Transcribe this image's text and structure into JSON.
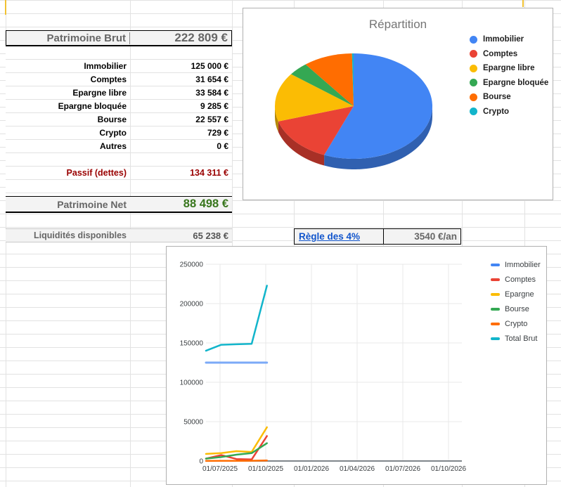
{
  "colors": {
    "blue": "#4285F4",
    "red": "#EA4335",
    "yellow": "#FBBC04",
    "green": "#34A853",
    "orange": "#FF6D01",
    "teal": "#12B5CB",
    "net_green": "#38761D",
    "passif_red": "#990000",
    "muted_gray": "#666666",
    "link_blue": "#1155CC"
  },
  "summary": {
    "brut": {
      "label": "Patrimoine Brut",
      "value": "222 809 €"
    },
    "items": [
      {
        "label": "Immobilier",
        "value": "125 000 €"
      },
      {
        "label": "Comptes",
        "value": "31 654 €"
      },
      {
        "label": "Epargne libre",
        "value": "33 584 €"
      },
      {
        "label": "Epargne bloquée",
        "value": "9 285 €"
      },
      {
        "label": "Bourse",
        "value": "22 557 €"
      },
      {
        "label": "Crypto",
        "value": "729 €"
      },
      {
        "label": "Autres",
        "value": "0 €"
      }
    ],
    "passif": {
      "label": "Passif (dettes)",
      "value": "134 311 €"
    },
    "net": {
      "label": "Patrimoine Net",
      "value": "88 498 €"
    },
    "liquidites": {
      "label": "Liquidités disponibles",
      "value": "65 238 €"
    }
  },
  "regle": {
    "label": "Règle des 4%",
    "value": "3540 €/an"
  },
  "chart_data": [
    {
      "type": "pie",
      "style": "3d",
      "title": "Répartition",
      "labels": [
        "Immobilier",
        "Comptes",
        "Epargne libre",
        "Epargne bloquée",
        "Bourse",
        "Crypto"
      ],
      "values": [
        125000,
        31654,
        33584,
        9285,
        22557,
        729
      ],
      "colors": [
        "#4285F4",
        "#EA4335",
        "#FBBC04",
        "#34A853",
        "#FF6D01",
        "#12B5CB"
      ],
      "legend_position": "right"
    },
    {
      "type": "line",
      "x": [
        "01/06/2025",
        "01/07/2025",
        "01/08/2025",
        "01/09/2025",
        "01/10/2025"
      ],
      "x_axis_ticks": [
        "01/07/2025",
        "01/10/2025",
        "01/01/2026",
        "01/04/2026",
        "01/07/2026",
        "01/10/2026"
      ],
      "series": [
        {
          "name": "Immobilier",
          "color": "#4285F4",
          "line_color": "#7BAAF7",
          "values": [
            125000,
            125000,
            125000,
            125000,
            125000
          ]
        },
        {
          "name": "Comptes",
          "color": "#EA4335",
          "values": [
            3000,
            7500,
            2500,
            2000,
            31654
          ]
        },
        {
          "name": "Epargne",
          "color": "#FBBC04",
          "values": [
            9000,
            10000,
            12500,
            11500,
            42869
          ]
        },
        {
          "name": "Bourse",
          "color": "#34A853",
          "values": [
            3000,
            5000,
            8000,
            10000,
            22557
          ]
        },
        {
          "name": "Crypto",
          "color": "#FF6D01",
          "values": [
            100,
            200,
            300,
            400,
            729
          ]
        },
        {
          "name": "Total Brut",
          "color": "#12B5CB",
          "values": [
            140100,
            147700,
            148300,
            148900,
            222809
          ]
        }
      ],
      "ylim": [
        0,
        250000
      ],
      "y_ticks": [
        0,
        50000,
        100000,
        150000,
        200000,
        250000
      ],
      "grid": true,
      "legend_position": "right"
    }
  ]
}
